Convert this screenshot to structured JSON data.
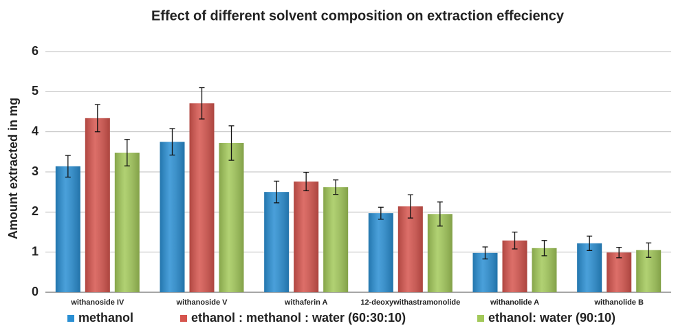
{
  "chart_data": {
    "type": "bar",
    "title": "Effect of different solvent composition on extraction effeciency",
    "y_label": "Amount extracted in mg",
    "categories": [
      "withanoside IV",
      "withanoside V",
      "withaferin A",
      "12-deoxywithastramonolide",
      "withanolide A",
      "withanolide B"
    ],
    "series": [
      {
        "name": "methanol",
        "color": "#2a8fd3",
        "values": [
          3.14,
          3.75,
          2.5,
          1.97,
          0.98,
          1.22
        ],
        "errors": [
          0.27,
          0.33,
          0.27,
          0.15,
          0.15,
          0.18
        ]
      },
      {
        "name": "ethanol : methanol : water (60:30:10)",
        "color": "#d6554e",
        "values": [
          4.34,
          4.71,
          2.76,
          2.14,
          1.29,
          0.99
        ],
        "errors": [
          0.34,
          0.39,
          0.23,
          0.29,
          0.21,
          0.13
        ]
      },
      {
        "name": "ethanol: water (90:10)",
        "color": "#a3c95a",
        "values": [
          3.48,
          3.72,
          2.62,
          1.95,
          1.1,
          1.05
        ],
        "errors": [
          0.33,
          0.43,
          0.18,
          0.3,
          0.19,
          0.18
        ]
      }
    ],
    "ylim": [
      0,
      6
    ],
    "yticks": [
      0,
      1,
      2,
      3,
      4,
      5,
      6
    ],
    "grid": true,
    "legend": "bottom"
  }
}
